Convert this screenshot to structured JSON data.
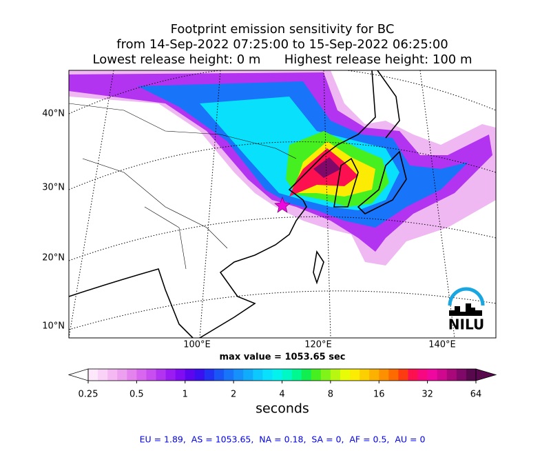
{
  "header": {
    "lines": [
      "Footprint emission sensitivity for BC",
      "from 14-Sep-2022 07:25:00 to 15-Sep-2022 06:25:00",
      "Lowest release height: 0 m      Highest release height: 100 m"
    ]
  },
  "map": {
    "lat_labels": [
      "40°N",
      "30°N",
      "20°N",
      "10°N"
    ],
    "lon_labels": [
      "100°E",
      "120°E",
      "140°E"
    ],
    "logo": "NILU",
    "max_value": "max value = 1053.65 sec"
  },
  "colorbar": {
    "ticks": [
      0.25,
      0.5,
      1,
      2,
      4,
      8,
      16,
      32,
      64
    ],
    "label": "seconds",
    "log_scale": true,
    "colors": [
      "#fde8fb",
      "#fad2f7",
      "#f5b8f3",
      "#eea0f0",
      "#e583ee",
      "#d966ee",
      "#c84ef0",
      "#b233f0",
      "#9a1cf2",
      "#7f0cf2",
      "#5c06f0",
      "#3a10f0",
      "#2232f2",
      "#1a55f5",
      "#1874f8",
      "#1690fa",
      "#10acfb",
      "#0cc8fc",
      "#08e0fc",
      "#04f2ee",
      "#00f8c6",
      "#00f890",
      "#10ee50",
      "#46f020",
      "#80f418",
      "#b8f810",
      "#e8fc08",
      "#fcec04",
      "#fcd000",
      "#fcb000",
      "#fc9000",
      "#fc6a00",
      "#fc3c10",
      "#fc1050",
      "#f80880",
      "#ee08a0",
      "#d00890",
      "#a8087a",
      "#800868",
      "#58084c"
    ]
  },
  "footer": {
    "text": "EU = 1.89,  AS = 1053.65,  NA = 0.18,  SA = 0,  AF = 0.5,  AU = 0"
  }
}
